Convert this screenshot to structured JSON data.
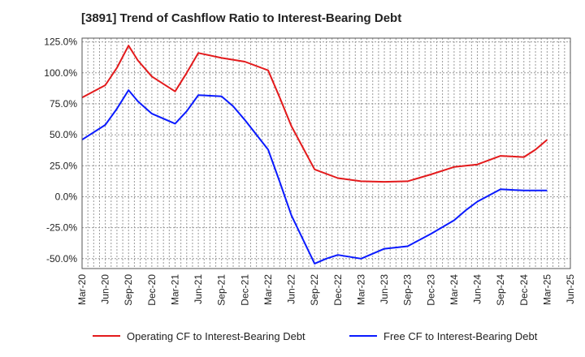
{
  "chart_data": {
    "type": "line",
    "title": "[3891]  Trend of Cashflow Ratio to Interest-Bearing Debt",
    "xlabel": "",
    "ylabel": "",
    "x_tick_labels": [
      "Mar-20",
      "Jun-20",
      "Sep-20",
      "Dec-20",
      "Mar-21",
      "Jun-21",
      "Sep-21",
      "Dec-21",
      "Mar-22",
      "Jun-22",
      "Sep-22",
      "Dec-22",
      "Mar-23",
      "Jun-23",
      "Sep-23",
      "Dec-23",
      "Mar-24",
      "Jun-24",
      "Sep-24",
      "Dec-24",
      "Mar-25",
      "Jun-25"
    ],
    "y_ticks": [
      -50,
      -25,
      0,
      25,
      50,
      75,
      100,
      125
    ],
    "y_tick_labels": [
      "-50.0%",
      "-25.0%",
      "0.0%",
      "25.0%",
      "50.0%",
      "75.0%",
      "100.0%",
      "125.0%"
    ],
    "ylim": [
      -58,
      128
    ],
    "grid": true,
    "legend_position": "bottom",
    "series": [
      {
        "name": "Operating CF to Interest-Bearing Debt",
        "color": "#e31a1c",
        "points": [
          [
            0,
            80
          ],
          [
            1,
            90
          ],
          [
            1.5,
            104
          ],
          [
            2,
            122
          ],
          [
            2.4,
            110
          ],
          [
            3,
            97
          ],
          [
            4,
            85
          ],
          [
            4.5,
            100
          ],
          [
            5,
            116
          ],
          [
            6,
            112
          ],
          [
            7,
            109
          ],
          [
            8,
            102
          ],
          [
            8.5,
            80
          ],
          [
            9,
            57
          ],
          [
            10,
            22
          ],
          [
            11,
            15
          ],
          [
            12,
            12.5
          ],
          [
            13,
            12
          ],
          [
            14,
            12.5
          ],
          [
            15,
            18
          ],
          [
            16,
            24
          ],
          [
            17,
            26
          ],
          [
            18,
            33
          ],
          [
            19,
            32
          ],
          [
            19.5,
            38
          ],
          [
            20,
            46
          ]
        ]
      },
      {
        "name": "Free CF to Interest-Bearing Debt",
        "color": "#0a1aff",
        "points": [
          [
            0,
            46
          ],
          [
            1,
            58
          ],
          [
            1.5,
            71
          ],
          [
            2,
            86
          ],
          [
            2.4,
            77
          ],
          [
            3,
            67
          ],
          [
            4,
            59
          ],
          [
            4.5,
            69
          ],
          [
            5,
            82
          ],
          [
            6,
            81
          ],
          [
            6.5,
            73
          ],
          [
            7,
            62
          ],
          [
            8,
            38
          ],
          [
            8.5,
            12
          ],
          [
            9,
            -15
          ],
          [
            10,
            -54
          ],
          [
            10.5,
            -50
          ],
          [
            11,
            -47
          ],
          [
            12,
            -50
          ],
          [
            13,
            -42
          ],
          [
            14,
            -40
          ],
          [
            15,
            -30
          ],
          [
            16,
            -19
          ],
          [
            16.5,
            -11
          ],
          [
            17,
            -4
          ],
          [
            18,
            6
          ],
          [
            19,
            5
          ],
          [
            20,
            5
          ]
        ]
      }
    ]
  }
}
